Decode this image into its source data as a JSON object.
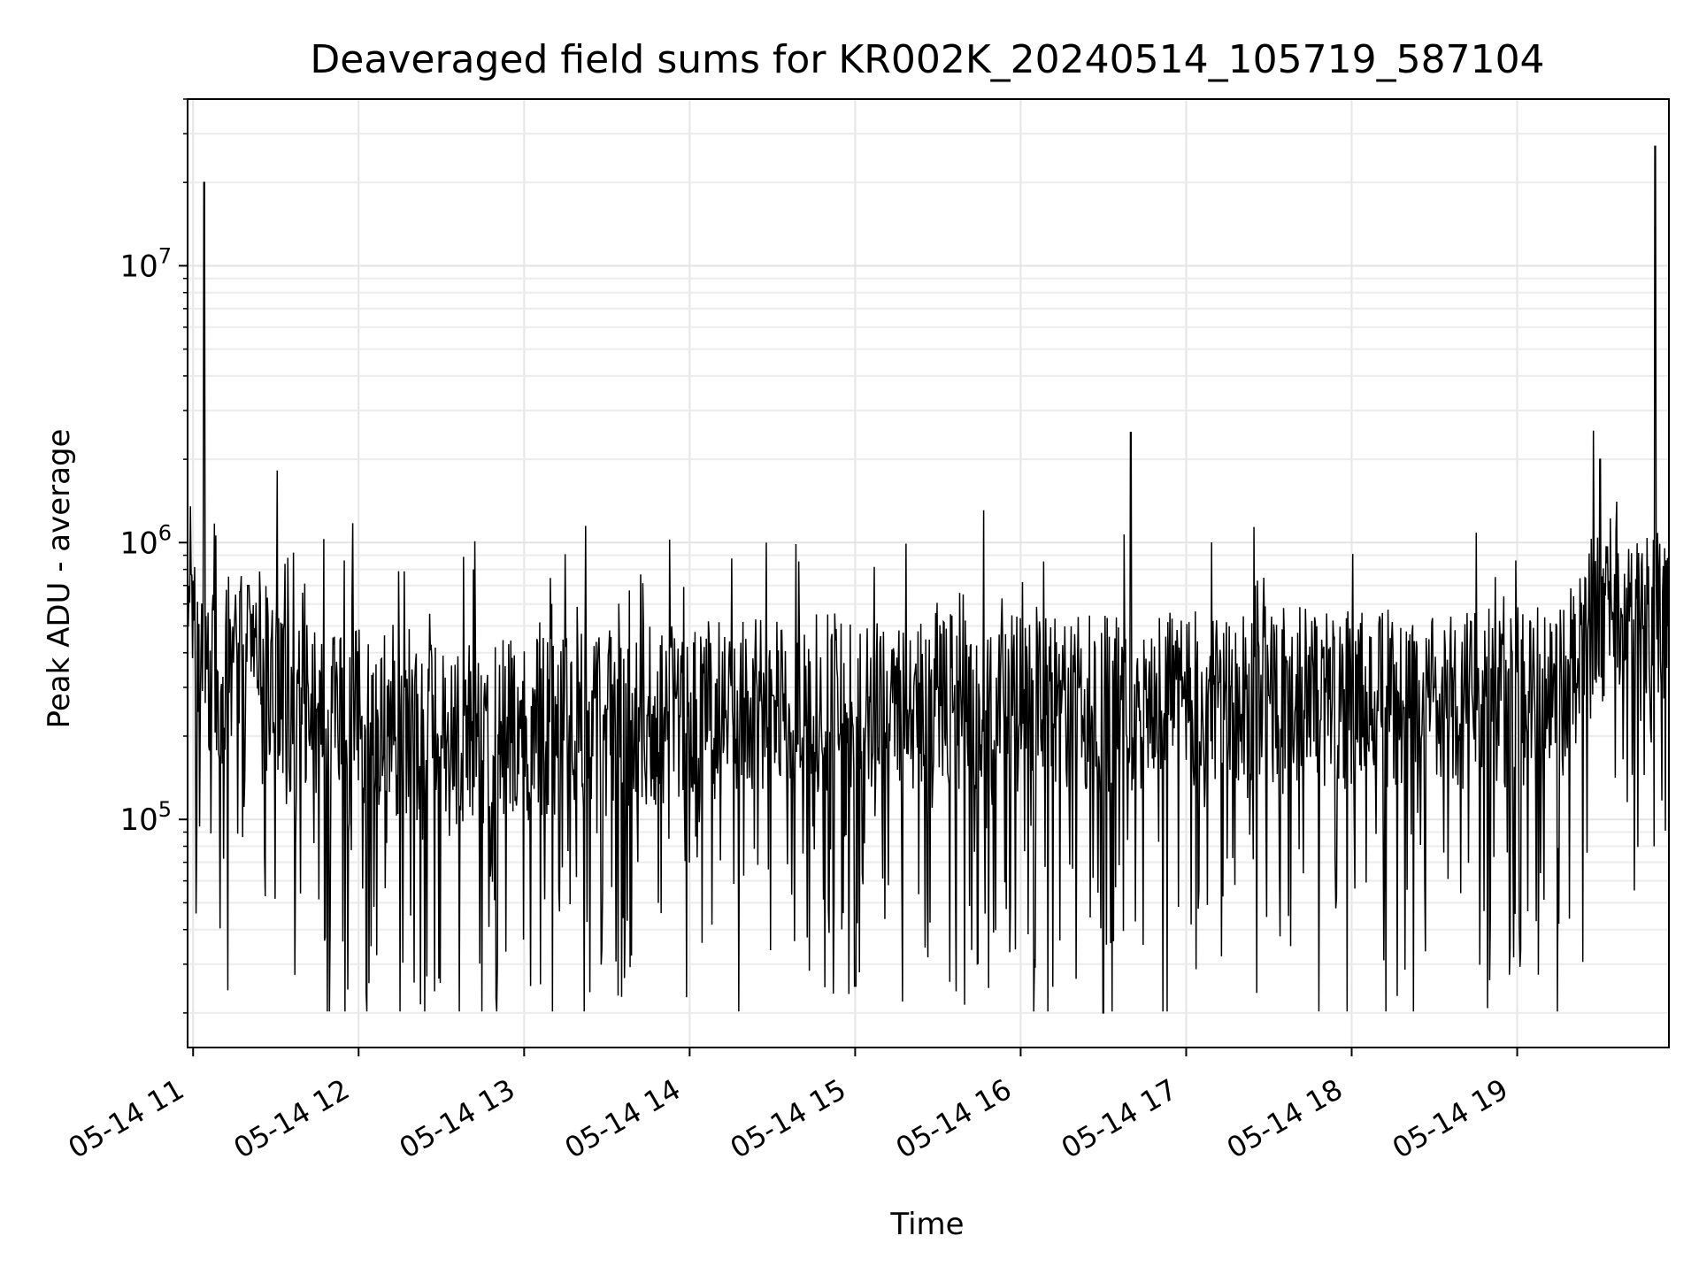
{
  "chart_data": {
    "type": "line",
    "title": "Deaveraged field sums for KR002K_20240514_105719_587104",
    "xlabel": "Time",
    "ylabel": "Peak ADU - average",
    "yscale": "log",
    "grid": true,
    "legend": "none",
    "x_range": [
      "2024-05-14 10:58",
      "2024-05-14 19:55"
    ],
    "y_range": [
      15000,
      40000000
    ],
    "x_ticks": [
      {
        "time": "2024-05-14 11:00",
        "label": "05-14 11"
      },
      {
        "time": "2024-05-14 12:00",
        "label": "05-14 12"
      },
      {
        "time": "2024-05-14 13:00",
        "label": "05-14 13"
      },
      {
        "time": "2024-05-14 14:00",
        "label": "05-14 14"
      },
      {
        "time": "2024-05-14 15:00",
        "label": "05-14 15"
      },
      {
        "time": "2024-05-14 16:00",
        "label": "05-14 16"
      },
      {
        "time": "2024-05-14 17:00",
        "label": "05-14 17"
      },
      {
        "time": "2024-05-14 18:00",
        "label": "05-14 18"
      },
      {
        "time": "2024-05-14 19:00",
        "label": "05-14 19"
      }
    ],
    "y_ticks": [
      {
        "value": 100000,
        "base": "10",
        "exp": "5"
      },
      {
        "value": 1000000,
        "base": "10",
        "exp": "6"
      },
      {
        "value": 10000000,
        "base": "10",
        "exp": "7"
      }
    ],
    "series": [
      {
        "color": "#000000",
        "approx_points": [
          {
            "x": "2024-05-14 10:58",
            "y": 500000
          },
          {
            "x": "2024-05-14 11:04",
            "y": 20000000
          },
          {
            "x": "2024-05-14 11:05",
            "y": 350000
          },
          {
            "x": "2024-05-14 11:20",
            "y": 700000
          },
          {
            "x": "2024-05-14 11:45",
            "y": 250000
          },
          {
            "x": "2024-05-14 12:30",
            "y": 200000
          },
          {
            "x": "2024-05-14 13:30",
            "y": 250000
          },
          {
            "x": "2024-05-14 14:30",
            "y": 280000
          },
          {
            "x": "2024-05-14 15:00",
            "y": 25000
          },
          {
            "x": "2024-05-14 15:30",
            "y": 300000
          },
          {
            "x": "2024-05-14 16:30",
            "y": 20000
          },
          {
            "x": "2024-05-14 16:40",
            "y": 2500000
          },
          {
            "x": "2024-05-14 17:30",
            "y": 280000
          },
          {
            "x": "2024-05-14 18:30",
            "y": 300000
          },
          {
            "x": "2024-05-14 19:30",
            "y": 2000000
          },
          {
            "x": "2024-05-14 19:50",
            "y": 27000000
          },
          {
            "x": "2024-05-14 19:55",
            "y": 500000
          }
        ],
        "baseline_trend": [
          {
            "x": "2024-05-14 10:58",
            "y": 480000
          },
          {
            "x": "2024-05-14 11:10",
            "y": 320000
          },
          {
            "x": "2024-05-14 11:20",
            "y": 500000
          },
          {
            "x": "2024-05-14 11:35",
            "y": 260000
          },
          {
            "x": "2024-05-14 12:30",
            "y": 200000
          },
          {
            "x": "2024-05-14 13:30",
            "y": 230000
          },
          {
            "x": "2024-05-14 14:30",
            "y": 260000
          },
          {
            "x": "2024-05-14 15:30",
            "y": 270000
          },
          {
            "x": "2024-05-14 16:30",
            "y": 260000
          },
          {
            "x": "2024-05-14 17:30",
            "y": 280000
          },
          {
            "x": "2024-05-14 18:30",
            "y": 270000
          },
          {
            "x": "2024-05-14 19:15",
            "y": 280000
          },
          {
            "x": "2024-05-14 19:30",
            "y": 520000
          },
          {
            "x": "2024-05-14 19:55",
            "y": 520000
          }
        ]
      }
    ]
  }
}
